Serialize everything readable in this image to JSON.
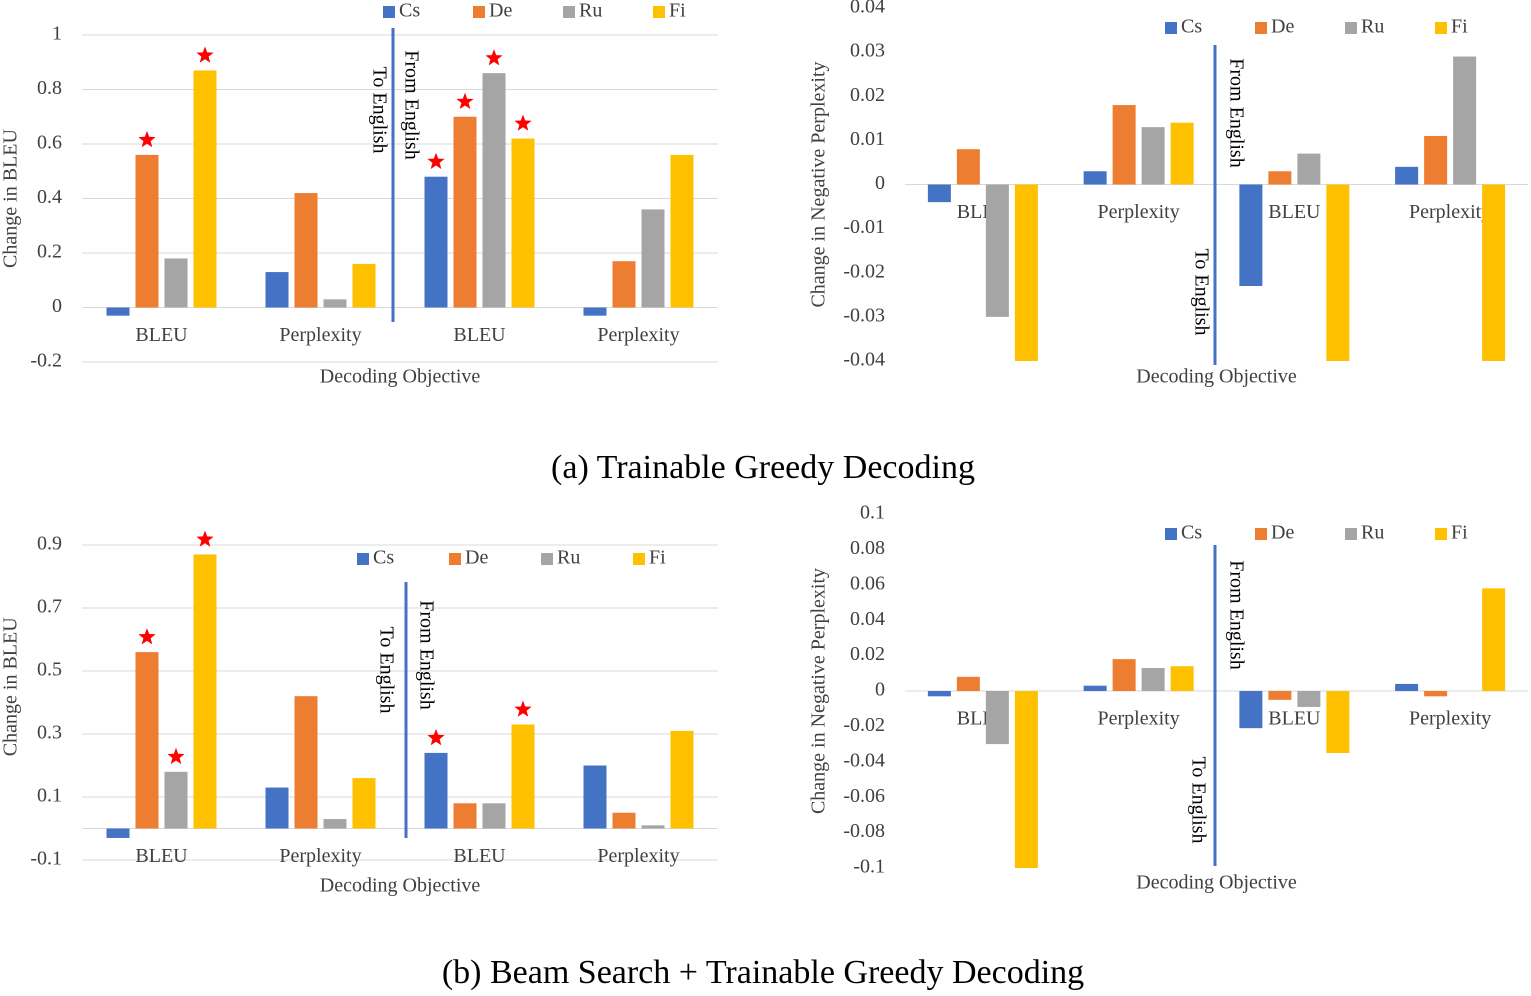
{
  "chart_data": [
    {
      "type": "bar",
      "y_label": "Change in BLEU",
      "x_label": "Decoding Objective",
      "categories": [
        "BLEU",
        "Perplexity",
        "BLEU",
        "Perplexity"
      ],
      "series": [
        {
          "name": "Cs",
          "color": "#4472c4",
          "values": [
            -0.03,
            0.13,
            0.48,
            -0.03
          ],
          "starred": [
            false,
            false,
            true,
            false
          ]
        },
        {
          "name": "De",
          "color": "#ed7d31",
          "values": [
            0.56,
            0.42,
            0.7,
            0.17
          ],
          "starred": [
            true,
            false,
            true,
            false
          ]
        },
        {
          "name": "Ru",
          "color": "#a5a5a5",
          "values": [
            0.18,
            0.03,
            0.86,
            0.36
          ],
          "starred": [
            false,
            false,
            true,
            false
          ]
        },
        {
          "name": "Fi",
          "color": "#ffc000",
          "values": [
            0.87,
            0.16,
            0.62,
            0.56
          ],
          "starred": [
            true,
            false,
            true,
            false
          ]
        }
      ],
      "ylim": [
        -0.2,
        1
      ],
      "yticks": [
        -0.2,
        0,
        0.2,
        0.4,
        0.6,
        0.8,
        1
      ],
      "grid": true,
      "legend": "top",
      "annotations": [
        "To English",
        "From English"
      ],
      "star_color": "#ff0000"
    },
    {
      "type": "bar",
      "y_label": "Change in Negative Perplexity",
      "x_label": "Decoding Objective",
      "categories": [
        "BLEU",
        "Perplexity",
        "BLEU",
        "Perplexity"
      ],
      "series": [
        {
          "name": "Cs",
          "color": "#4472c4",
          "values": [
            -0.004,
            0.003,
            -0.023,
            0.004
          ]
        },
        {
          "name": "De",
          "color": "#ed7d31",
          "values": [
            0.008,
            0.018,
            0.003,
            0.011
          ]
        },
        {
          "name": "Ru",
          "color": "#a5a5a5",
          "values": [
            -0.03,
            0.013,
            0.007,
            0.029
          ]
        },
        {
          "name": "Fi",
          "color": "#ffc000",
          "values": [
            -0.04,
            0.014,
            -0.04,
            -0.04
          ]
        }
      ],
      "ylim": [
        -0.04,
        0.04
      ],
      "yticks": [
        -0.04,
        -0.03,
        -0.02,
        -0.01,
        0,
        0.01,
        0.02,
        0.03,
        0.04
      ],
      "grid": false,
      "legend": "top",
      "annotations": [
        "To English",
        "From English"
      ]
    },
    {
      "type": "bar",
      "y_label": "Change in BLEU",
      "x_label": "Decoding Objective",
      "categories": [
        "BLEU",
        "Perplexity",
        "BLEU",
        "Perplexity"
      ],
      "series": [
        {
          "name": "Cs",
          "color": "#4472c4",
          "values": [
            -0.03,
            0.13,
            0.24,
            0.2
          ],
          "starred": [
            false,
            false,
            true,
            false
          ]
        },
        {
          "name": "De",
          "color": "#ed7d31",
          "values": [
            0.56,
            0.42,
            0.08,
            0.05
          ],
          "starred": [
            true,
            false,
            false,
            false
          ]
        },
        {
          "name": "Ru",
          "color": "#a5a5a5",
          "values": [
            0.18,
            0.03,
            0.08,
            0.01
          ],
          "starred": [
            true,
            false,
            false,
            false
          ]
        },
        {
          "name": "Fi",
          "color": "#ffc000",
          "values": [
            0.87,
            0.16,
            0.33,
            0.31
          ],
          "starred": [
            true,
            false,
            true,
            false
          ]
        }
      ],
      "ylim": [
        -0.1,
        1
      ],
      "yticks": [
        -0.1,
        0.1,
        0.3,
        0.5,
        0.7,
        0.9
      ],
      "grid": true,
      "legend": "top",
      "annotations": [
        "To English",
        "From English"
      ],
      "star_color": "#ff0000"
    },
    {
      "type": "bar",
      "y_label": "Change in Negative Perplexity",
      "x_label": "Decoding Objective",
      "categories": [
        "BLEU",
        "Perplexity",
        "BLEU",
        "Perplexity"
      ],
      "series": [
        {
          "name": "Cs",
          "color": "#4472c4",
          "values": [
            -0.003,
            0.003,
            -0.021,
            0.004
          ]
        },
        {
          "name": "De",
          "color": "#ed7d31",
          "values": [
            0.008,
            0.018,
            -0.005,
            -0.003
          ]
        },
        {
          "name": "Ru",
          "color": "#a5a5a5",
          "values": [
            -0.03,
            0.013,
            -0.009,
            0
          ]
        },
        {
          "name": "Fi",
          "color": "#ffc000",
          "values": [
            -0.1,
            0.014,
            -0.035,
            0.058
          ]
        }
      ],
      "ylim": [
        -0.1,
        0.1
      ],
      "yticks": [
        -0.1,
        -0.08,
        -0.06,
        -0.04,
        -0.02,
        0,
        0.02,
        0.04,
        0.06,
        0.08,
        0.1
      ],
      "grid": false,
      "legend": "top",
      "annotations": [
        "To English",
        "From English"
      ]
    }
  ],
  "captions": [
    "(a) Trainable Greedy Decoding",
    "(b) Beam Search + Trainable Greedy Decoding"
  ]
}
